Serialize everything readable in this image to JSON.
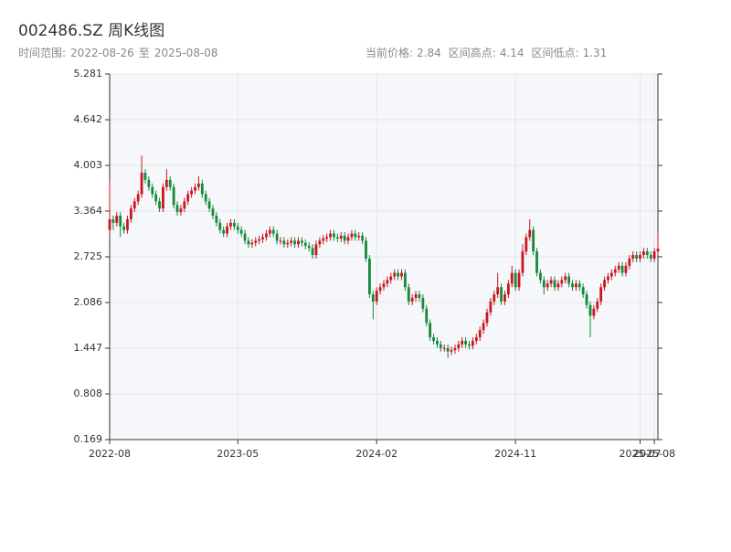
{
  "chart_data": {
    "type": "candlestick",
    "title": "002486.SZ 周K线图",
    "time_range": {
      "label": "时间范围:",
      "start": "2022-08-26",
      "sep": "至",
      "end": "2025-08-08"
    },
    "stats": [
      {
        "label": "当前价格:",
        "value": 2.84
      },
      {
        "label": "区间高点:",
        "value": 4.14
      },
      {
        "label": "区间低点:",
        "value": 1.31
      }
    ],
    "up_color": "#c8171e",
    "down_color": "#16893a",
    "grid": true,
    "ylim": [
      0.169,
      5.281
    ],
    "yticks": [
      0.169,
      0.808,
      1.447,
      2.086,
      2.725,
      3.364,
      4.003,
      4.642,
      5.281
    ],
    "xticks": [
      "2022-08",
      "2023-05",
      "2024-02",
      "2024-11",
      "2025-07",
      "2025-08"
    ],
    "ohlc": [
      [
        3.1,
        3.8,
        3.05,
        3.25
      ],
      [
        3.25,
        3.3,
        3.1,
        3.2
      ],
      [
        3.2,
        3.35,
        3.15,
        3.3
      ],
      [
        3.3,
        3.35,
        3.0,
        3.15
      ],
      [
        3.15,
        3.2,
        3.05,
        3.1
      ],
      [
        3.1,
        3.3,
        3.05,
        3.25
      ],
      [
        3.25,
        3.45,
        3.2,
        3.4
      ],
      [
        3.4,
        3.55,
        3.35,
        3.5
      ],
      [
        3.5,
        3.65,
        3.45,
        3.6
      ],
      [
        3.6,
        4.14,
        3.55,
        3.9
      ],
      [
        3.9,
        3.95,
        3.75,
        3.8
      ],
      [
        3.8,
        3.85,
        3.65,
        3.7
      ],
      [
        3.7,
        3.75,
        3.55,
        3.6
      ],
      [
        3.6,
        3.65,
        3.45,
        3.5
      ],
      [
        3.5,
        3.55,
        3.35,
        3.4
      ],
      [
        3.4,
        3.75,
        3.35,
        3.7
      ],
      [
        3.7,
        3.95,
        3.65,
        3.8
      ],
      [
        3.8,
        3.85,
        3.65,
        3.7
      ],
      [
        3.7,
        3.75,
        3.4,
        3.45
      ],
      [
        3.45,
        3.5,
        3.3,
        3.35
      ],
      [
        3.35,
        3.45,
        3.3,
        3.4
      ],
      [
        3.4,
        3.55,
        3.35,
        3.5
      ],
      [
        3.5,
        3.65,
        3.45,
        3.6
      ],
      [
        3.6,
        3.7,
        3.55,
        3.65
      ],
      [
        3.65,
        3.75,
        3.6,
        3.7
      ],
      [
        3.7,
        3.85,
        3.65,
        3.75
      ],
      [
        3.75,
        3.8,
        3.55,
        3.6
      ],
      [
        3.6,
        3.65,
        3.45,
        3.5
      ],
      [
        3.5,
        3.55,
        3.35,
        3.4
      ],
      [
        3.4,
        3.45,
        3.25,
        3.3
      ],
      [
        3.3,
        3.35,
        3.15,
        3.2
      ],
      [
        3.2,
        3.25,
        3.05,
        3.1
      ],
      [
        3.1,
        3.15,
        3.0,
        3.05
      ],
      [
        3.05,
        3.2,
        3.0,
        3.15
      ],
      [
        3.15,
        3.25,
        3.1,
        3.2
      ],
      [
        3.2,
        3.25,
        3.1,
        3.15
      ],
      [
        3.15,
        3.2,
        3.05,
        3.1
      ],
      [
        3.1,
        3.15,
        3.0,
        3.05
      ],
      [
        3.05,
        3.1,
        2.9,
        2.95
      ],
      [
        2.95,
        3.0,
        2.85,
        2.9
      ],
      [
        2.9,
        2.97,
        2.85,
        2.92
      ],
      [
        2.92,
        3.0,
        2.87,
        2.95
      ],
      [
        2.95,
        3.02,
        2.9,
        2.97
      ],
      [
        2.97,
        3.05,
        2.92,
        3.0
      ],
      [
        3.0,
        3.1,
        2.95,
        3.05
      ],
      [
        3.05,
        3.15,
        3.0,
        3.1
      ],
      [
        3.1,
        3.15,
        3.0,
        3.05
      ],
      [
        3.05,
        3.1,
        2.9,
        2.95
      ],
      [
        2.95,
        3.0,
        2.9,
        2.95
      ],
      [
        2.95,
        3.0,
        2.85,
        2.9
      ],
      [
        2.9,
        2.97,
        2.85,
        2.92
      ],
      [
        2.92,
        3.0,
        2.87,
        2.95
      ],
      [
        2.95,
        3.0,
        2.85,
        2.9
      ],
      [
        2.9,
        3.0,
        2.85,
        2.95
      ],
      [
        2.95,
        3.0,
        2.87,
        2.92
      ],
      [
        2.92,
        2.97,
        2.83,
        2.88
      ],
      [
        2.88,
        2.93,
        2.8,
        2.85
      ],
      [
        2.85,
        2.9,
        2.7,
        2.75
      ],
      [
        2.75,
        2.95,
        2.7,
        2.9
      ],
      [
        2.9,
        3.0,
        2.85,
        2.95
      ],
      [
        2.95,
        3.03,
        2.9,
        2.98
      ],
      [
        2.98,
        3.05,
        2.93,
        3.0
      ],
      [
        3.0,
        3.1,
        2.95,
        3.05
      ],
      [
        3.05,
        3.1,
        2.95,
        3.0
      ],
      [
        3.0,
        3.05,
        2.93,
        2.98
      ],
      [
        2.98,
        3.07,
        2.93,
        3.02
      ],
      [
        3.02,
        3.07,
        2.9,
        2.95
      ],
      [
        2.95,
        3.05,
        2.9,
        3.0
      ],
      [
        3.0,
        3.1,
        2.95,
        3.05
      ],
      [
        3.05,
        3.1,
        2.95,
        3.0
      ],
      [
        3.0,
        3.07,
        2.95,
        3.02
      ],
      [
        3.02,
        3.07,
        2.9,
        2.95
      ],
      [
        2.95,
        3.0,
        2.65,
        2.7
      ],
      [
        2.7,
        2.75,
        2.15,
        2.2
      ],
      [
        2.2,
        2.25,
        1.85,
        2.1
      ],
      [
        2.1,
        2.3,
        2.05,
        2.25
      ],
      [
        2.25,
        2.35,
        2.2,
        2.3
      ],
      [
        2.3,
        2.4,
        2.25,
        2.35
      ],
      [
        2.35,
        2.45,
        2.3,
        2.4
      ],
      [
        2.4,
        2.5,
        2.35,
        2.45
      ],
      [
        2.45,
        2.55,
        2.4,
        2.5
      ],
      [
        2.5,
        2.55,
        2.4,
        2.45
      ],
      [
        2.45,
        2.55,
        2.4,
        2.5
      ],
      [
        2.5,
        2.55,
        2.25,
        2.3
      ],
      [
        2.3,
        2.35,
        2.05,
        2.1
      ],
      [
        2.1,
        2.2,
        2.05,
        2.15
      ],
      [
        2.15,
        2.25,
        2.1,
        2.2
      ],
      [
        2.2,
        2.25,
        2.1,
        2.15
      ],
      [
        2.15,
        2.2,
        1.95,
        2.0
      ],
      [
        2.0,
        2.05,
        1.75,
        1.8
      ],
      [
        1.8,
        1.85,
        1.55,
        1.6
      ],
      [
        1.6,
        1.65,
        1.5,
        1.55
      ],
      [
        1.55,
        1.6,
        1.45,
        1.5
      ],
      [
        1.5,
        1.55,
        1.4,
        1.45
      ],
      [
        1.45,
        1.5,
        1.4,
        1.45
      ],
      [
        1.45,
        1.5,
        1.31,
        1.4
      ],
      [
        1.4,
        1.47,
        1.35,
        1.42
      ],
      [
        1.42,
        1.5,
        1.37,
        1.45
      ],
      [
        1.45,
        1.55,
        1.4,
        1.5
      ],
      [
        1.5,
        1.6,
        1.45,
        1.55
      ],
      [
        1.55,
        1.6,
        1.45,
        1.5
      ],
      [
        1.5,
        1.55,
        1.43,
        1.48
      ],
      [
        1.48,
        1.6,
        1.43,
        1.55
      ],
      [
        1.55,
        1.65,
        1.5,
        1.6
      ],
      [
        1.6,
        1.75,
        1.55,
        1.7
      ],
      [
        1.7,
        1.85,
        1.65,
        1.8
      ],
      [
        1.8,
        2.0,
        1.75,
        1.95
      ],
      [
        1.95,
        2.15,
        1.9,
        2.1
      ],
      [
        2.1,
        2.25,
        2.05,
        2.2
      ],
      [
        2.2,
        2.5,
        2.15,
        2.3
      ],
      [
        2.3,
        2.35,
        2.05,
        2.1
      ],
      [
        2.1,
        2.25,
        2.05,
        2.2
      ],
      [
        2.2,
        2.4,
        2.15,
        2.35
      ],
      [
        2.35,
        2.6,
        2.3,
        2.5
      ],
      [
        2.5,
        2.55,
        2.25,
        2.3
      ],
      [
        2.3,
        2.55,
        2.25,
        2.5
      ],
      [
        2.5,
        2.9,
        2.45,
        2.8
      ],
      [
        2.8,
        3.05,
        2.75,
        3.0
      ],
      [
        3.0,
        3.25,
        2.95,
        3.1
      ],
      [
        3.1,
        3.15,
        2.75,
        2.8
      ],
      [
        2.8,
        2.85,
        2.45,
        2.5
      ],
      [
        2.5,
        2.55,
        2.35,
        2.4
      ],
      [
        2.4,
        2.45,
        2.2,
        2.3
      ],
      [
        2.3,
        2.4,
        2.25,
        2.35
      ],
      [
        2.35,
        2.45,
        2.3,
        2.4
      ],
      [
        2.4,
        2.45,
        2.25,
        2.3
      ],
      [
        2.3,
        2.4,
        2.25,
        2.35
      ],
      [
        2.35,
        2.45,
        2.3,
        2.4
      ],
      [
        2.4,
        2.5,
        2.35,
        2.45
      ],
      [
        2.45,
        2.5,
        2.3,
        2.35
      ],
      [
        2.35,
        2.4,
        2.25,
        2.3
      ],
      [
        2.3,
        2.4,
        2.25,
        2.35
      ],
      [
        2.35,
        2.4,
        2.25,
        2.3
      ],
      [
        2.3,
        2.35,
        2.15,
        2.2
      ],
      [
        2.2,
        2.25,
        2.0,
        2.05
      ],
      [
        2.05,
        2.1,
        1.6,
        1.9
      ],
      [
        1.9,
        2.05,
        1.85,
        2.0
      ],
      [
        2.0,
        2.15,
        1.95,
        2.1
      ],
      [
        2.1,
        2.35,
        2.05,
        2.3
      ],
      [
        2.3,
        2.45,
        2.25,
        2.4
      ],
      [
        2.4,
        2.5,
        2.35,
        2.45
      ],
      [
        2.45,
        2.55,
        2.4,
        2.5
      ],
      [
        2.5,
        2.6,
        2.45,
        2.55
      ],
      [
        2.55,
        2.65,
        2.5,
        2.6
      ],
      [
        2.6,
        2.65,
        2.45,
        2.5
      ],
      [
        2.5,
        2.65,
        2.45,
        2.6
      ],
      [
        2.6,
        2.75,
        2.55,
        2.7
      ],
      [
        2.7,
        2.8,
        2.65,
        2.75
      ],
      [
        2.75,
        2.8,
        2.65,
        2.7
      ],
      [
        2.7,
        2.8,
        2.65,
        2.75
      ],
      [
        2.75,
        2.85,
        2.7,
        2.8
      ],
      [
        2.8,
        2.85,
        2.7,
        2.75
      ],
      [
        2.75,
        2.8,
        2.65,
        2.7
      ],
      [
        2.7,
        2.85,
        2.65,
        2.8
      ],
      [
        2.8,
        3.05,
        2.75,
        2.84
      ]
    ]
  }
}
